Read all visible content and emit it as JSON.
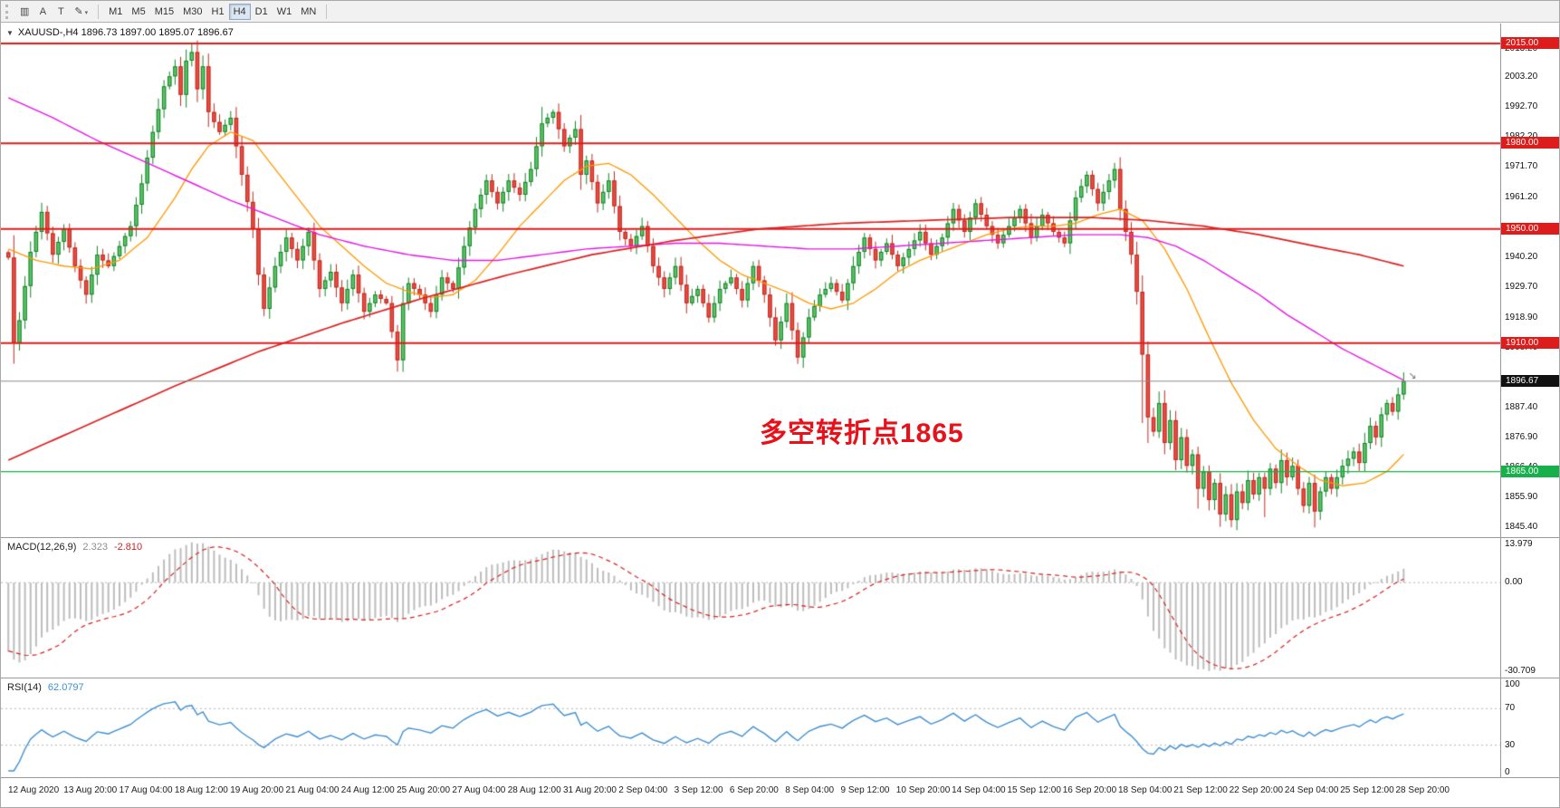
{
  "toolbar": {
    "icons": [
      {
        "name": "chart-objects-icon",
        "glyph": "▥"
      },
      {
        "name": "text-tool-icon",
        "glyph": "A"
      },
      {
        "name": "label-tool-icon",
        "glyph": "T"
      },
      {
        "name": "style-dropdown-icon",
        "glyph": "✎",
        "caret": "▾"
      }
    ],
    "timeframes": [
      {
        "label": "M1",
        "active": false
      },
      {
        "label": "M5",
        "active": false
      },
      {
        "label": "M15",
        "active": false
      },
      {
        "label": "M30",
        "active": false
      },
      {
        "label": "H1",
        "active": false
      },
      {
        "label": "H4",
        "active": true
      },
      {
        "label": "D1",
        "active": false
      },
      {
        "label": "W1",
        "active": false
      },
      {
        "label": "MN",
        "active": false
      }
    ]
  },
  "chart": {
    "symbol_header": {
      "collapse_icon": "▼",
      "text": "XAUUSD-,H4 1896.73 1897.00 1895.07 1896.67"
    },
    "annotation": {
      "text": "多空转折点1865",
      "color": "#e8111a"
    },
    "price_axis": {
      "max": 2022,
      "min": 1842,
      "ticks": [
        "2013.20",
        "2003.20",
        "1992.70",
        "1982.20",
        "1971.70",
        "1961.20",
        "1940.20",
        "1929.70",
        "1918.90",
        "1908.40",
        "1887.40",
        "1876.90",
        "1866.40",
        "1855.90",
        "1845.40"
      ]
    },
    "levels": [
      {
        "label": "2015.00",
        "price": 2015.0,
        "color": "#dd1c1c",
        "text_color": "#ffffff",
        "width": 2
      },
      {
        "label": "1980.00",
        "price": 1980.0,
        "color": "#dd1c1c",
        "text_color": "#ffffff",
        "width": 2
      },
      {
        "label": "1950.00",
        "price": 1950.0,
        "color": "#dd1c1c",
        "text_color": "#ffffff",
        "width": 2
      },
      {
        "label": "1910.00",
        "price": 1910.0,
        "color": "#dd1c1c",
        "text_color": "#ffffff",
        "width": 2
      },
      {
        "label": "1865.00",
        "price": 1865.0,
        "color": "#18b04a",
        "text_color": "#ffffff",
        "width": 1.2
      }
    ],
    "current_price": {
      "label": "1896.67",
      "price": 1896.67,
      "badge_color": "#111111",
      "text_color": "#ffffff",
      "line_color": "#8c8c8c"
    },
    "time_axis": [
      "12 Aug 2020",
      "13 Aug 20:00",
      "17 Aug 04:00",
      "18 Aug 12:00",
      "19 Aug 20:00",
      "21 Aug 04:00",
      "24 Aug 12:00",
      "25 Aug 20:00",
      "27 Aug 04:00",
      "28 Aug 12:00",
      "31 Aug 20:00",
      "2 Sep 04:00",
      "3 Sep 12:00",
      "6 Sep 20:00",
      "8 Sep 04:00",
      "9 Sep 12:00",
      "10 Sep 20:00",
      "14 Sep 04:00",
      "15 Sep 12:00",
      "16 Sep 20:00",
      "18 Sep 04:00",
      "21 Sep 12:00",
      "22 Sep 20:00",
      "24 Sep 04:00",
      "25 Sep 12:00",
      "28 Sep 20:00"
    ]
  },
  "chart_data": {
    "type": "candlestick",
    "symbol": "XAUUSD-",
    "timeframe": "H4",
    "current_ohlc": {
      "open": 1896.73,
      "high": 1897.0,
      "low": 1895.07,
      "close": 1896.67
    },
    "bars": 252,
    "price_range": [
      1842,
      2022
    ],
    "horizontal_levels": [
      2015,
      1980,
      1950,
      1910,
      1865
    ],
    "candle_colors": {
      "up_fill": "#5fc468",
      "up_stroke": "#14832a",
      "down_fill": "#ea4c41",
      "down_stroke": "#bf2b22"
    },
    "close_path": [
      [
        0,
        1940
      ],
      [
        1,
        1910
      ],
      [
        2,
        1918
      ],
      [
        4,
        1942
      ],
      [
        6,
        1956
      ],
      [
        8,
        1941
      ],
      [
        10,
        1950
      ],
      [
        12,
        1937
      ],
      [
        14,
        1927
      ],
      [
        16,
        1941
      ],
      [
        18,
        1937
      ],
      [
        20,
        1944
      ],
      [
        22,
        1951
      ],
      [
        24,
        1966
      ],
      [
        26,
        1984
      ],
      [
        28,
        2000
      ],
      [
        30,
        2007
      ],
      [
        31,
        1997
      ],
      [
        32,
        2009
      ],
      [
        33,
        2012
      ],
      [
        34,
        1999
      ],
      [
        35,
        2007
      ],
      [
        36,
        1991
      ],
      [
        38,
        1984
      ],
      [
        40,
        1989
      ],
      [
        42,
        1969
      ],
      [
        44,
        1950
      ],
      [
        45,
        1934
      ],
      [
        46,
        1922
      ],
      [
        48,
        1937
      ],
      [
        50,
        1947
      ],
      [
        52,
        1939
      ],
      [
        54,
        1949
      ],
      [
        56,
        1929
      ],
      [
        58,
        1935
      ],
      [
        60,
        1924
      ],
      [
        62,
        1934
      ],
      [
        64,
        1921
      ],
      [
        66,
        1927
      ],
      [
        68,
        1924
      ],
      [
        70,
        1904
      ],
      [
        71,
        1924
      ],
      [
        72,
        1931
      ],
      [
        74,
        1927
      ],
      [
        76,
        1921
      ],
      [
        78,
        1933
      ],
      [
        80,
        1929
      ],
      [
        82,
        1944
      ],
      [
        84,
        1957
      ],
      [
        86,
        1967
      ],
      [
        88,
        1959
      ],
      [
        90,
        1967
      ],
      [
        92,
        1962
      ],
      [
        94,
        1971
      ],
      [
        96,
        1987
      ],
      [
        98,
        1991
      ],
      [
        100,
        1979
      ],
      [
        102,
        1985
      ],
      [
        103,
        1969
      ],
      [
        104,
        1974
      ],
      [
        106,
        1959
      ],
      [
        108,
        1967
      ],
      [
        110,
        1949
      ],
      [
        112,
        1944
      ],
      [
        114,
        1951
      ],
      [
        116,
        1937
      ],
      [
        118,
        1929
      ],
      [
        120,
        1937
      ],
      [
        122,
        1924
      ],
      [
        124,
        1929
      ],
      [
        126,
        1919
      ],
      [
        128,
        1929
      ],
      [
        130,
        1933
      ],
      [
        132,
        1925
      ],
      [
        134,
        1937
      ],
      [
        136,
        1927
      ],
      [
        138,
        1911
      ],
      [
        140,
        1924
      ],
      [
        142,
        1905
      ],
      [
        144,
        1919
      ],
      [
        146,
        1927
      ],
      [
        148,
        1931
      ],
      [
        150,
        1925
      ],
      [
        152,
        1937
      ],
      [
        154,
        1947
      ],
      [
        156,
        1939
      ],
      [
        158,
        1945
      ],
      [
        160,
        1937
      ],
      [
        162,
        1943
      ],
      [
        164,
        1949
      ],
      [
        166,
        1941
      ],
      [
        168,
        1947
      ],
      [
        170,
        1957
      ],
      [
        172,
        1949
      ],
      [
        174,
        1959
      ],
      [
        176,
        1951
      ],
      [
        178,
        1945
      ],
      [
        180,
        1951
      ],
      [
        182,
        1957
      ],
      [
        184,
        1947
      ],
      [
        186,
        1955
      ],
      [
        188,
        1949
      ],
      [
        190,
        1945
      ],
      [
        192,
        1961
      ],
      [
        194,
        1969
      ],
      [
        196,
        1959
      ],
      [
        198,
        1967
      ],
      [
        199,
        1971
      ],
      [
        200,
        1957
      ],
      [
        201,
        1949
      ],
      [
        202,
        1941
      ],
      [
        203,
        1928
      ],
      [
        204,
        1906
      ],
      [
        205,
        1884
      ],
      [
        206,
        1879
      ],
      [
        207,
        1889
      ],
      [
        208,
        1875
      ],
      [
        209,
        1883
      ],
      [
        210,
        1869
      ],
      [
        211,
        1877
      ],
      [
        212,
        1867
      ],
      [
        213,
        1871
      ],
      [
        214,
        1859
      ],
      [
        215,
        1865
      ],
      [
        216,
        1855
      ],
      [
        217,
        1861
      ],
      [
        218,
        1850
      ],
      [
        219,
        1857
      ],
      [
        220,
        1848
      ],
      [
        221,
        1858
      ],
      [
        222,
        1854
      ],
      [
        223,
        1862
      ],
      [
        224,
        1857
      ],
      [
        225,
        1863
      ],
      [
        226,
        1859
      ],
      [
        227,
        1866
      ],
      [
        228,
        1861
      ],
      [
        229,
        1869
      ],
      [
        230,
        1863
      ],
      [
        231,
        1867
      ],
      [
        232,
        1859
      ],
      [
        233,
        1853
      ],
      [
        234,
        1861
      ],
      [
        235,
        1851
      ],
      [
        236,
        1858
      ],
      [
        237,
        1863
      ],
      [
        238,
        1859
      ],
      [
        240,
        1867
      ],
      [
        242,
        1872
      ],
      [
        243,
        1868
      ],
      [
        244,
        1875
      ],
      [
        245,
        1881
      ],
      [
        246,
        1877
      ],
      [
        247,
        1885
      ],
      [
        248,
        1889
      ],
      [
        249,
        1886
      ],
      [
        250,
        1892
      ],
      [
        251,
        1896.67
      ]
    ],
    "spikes": [
      {
        "bar": 33,
        "high": 2015.3
      },
      {
        "bar": 36,
        "high": 2009
      },
      {
        "bar": 70,
        "low": 1902.3
      },
      {
        "bar": 96,
        "high": 1992.8
      },
      {
        "bar": 142,
        "low": 1903.6
      },
      {
        "bar": 204,
        "low": 1882
      },
      {
        "bar": 205,
        "low": 1875
      },
      {
        "bar": 214,
        "low": 1852
      },
      {
        "bar": 218,
        "low": 1846.5
      },
      {
        "bar": 220,
        "low": 1845.7
      },
      {
        "bar": 226,
        "low": 1849
      },
      {
        "bar": 235,
        "low": 1845.4
      }
    ],
    "moving_averages": [
      {
        "name": "fast-ma",
        "color": "#ff9800",
        "width": 1.3,
        "points": [
          [
            0,
            1943
          ],
          [
            5,
            1939
          ],
          [
            10,
            1937
          ],
          [
            15,
            1936
          ],
          [
            20,
            1939
          ],
          [
            25,
            1947
          ],
          [
            30,
            1961
          ],
          [
            33,
            1971
          ],
          [
            36,
            1979
          ],
          [
            40,
            1984
          ],
          [
            44,
            1981
          ],
          [
            48,
            1971
          ],
          [
            52,
            1961
          ],
          [
            56,
            1951
          ],
          [
            60,
            1944
          ],
          [
            64,
            1937
          ],
          [
            68,
            1931
          ],
          [
            72,
            1928
          ],
          [
            76,
            1926
          ],
          [
            80,
            1927
          ],
          [
            84,
            1932
          ],
          [
            88,
            1941
          ],
          [
            92,
            1951
          ],
          [
            96,
            1959
          ],
          [
            100,
            1967
          ],
          [
            104,
            1972
          ],
          [
            108,
            1973
          ],
          [
            112,
            1969
          ],
          [
            116,
            1962
          ],
          [
            120,
            1954
          ],
          [
            124,
            1946
          ],
          [
            128,
            1939
          ],
          [
            132,
            1934
          ],
          [
            136,
            1931
          ],
          [
            140,
            1928
          ],
          [
            144,
            1924
          ],
          [
            148,
            1922
          ],
          [
            152,
            1924
          ],
          [
            156,
            1929
          ],
          [
            160,
            1935
          ],
          [
            164,
            1939
          ],
          [
            168,
            1942
          ],
          [
            172,
            1945
          ],
          [
            176,
            1948
          ],
          [
            180,
            1950
          ],
          [
            184,
            1951
          ],
          [
            188,
            1951
          ],
          [
            192,
            1952
          ],
          [
            196,
            1955
          ],
          [
            200,
            1957
          ],
          [
            204,
            1953
          ],
          [
            208,
            1943
          ],
          [
            212,
            1929
          ],
          [
            216,
            1912
          ],
          [
            220,
            1896
          ],
          [
            224,
            1883
          ],
          [
            228,
            1873
          ],
          [
            232,
            1867
          ],
          [
            236,
            1862
          ],
          [
            240,
            1860
          ],
          [
            244,
            1861
          ],
          [
            248,
            1865
          ],
          [
            251,
            1871
          ]
        ]
      },
      {
        "name": "mid-ma",
        "color": "#e616e6",
        "width": 1.4,
        "points": [
          [
            0,
            1996
          ],
          [
            8,
            1989
          ],
          [
            16,
            1981
          ],
          [
            24,
            1974
          ],
          [
            32,
            1967
          ],
          [
            40,
            1960
          ],
          [
            48,
            1954
          ],
          [
            56,
            1948
          ],
          [
            64,
            1944
          ],
          [
            72,
            1941
          ],
          [
            80,
            1939
          ],
          [
            88,
            1939
          ],
          [
            96,
            1941
          ],
          [
            104,
            1943
          ],
          [
            112,
            1944
          ],
          [
            120,
            1945
          ],
          [
            128,
            1945
          ],
          [
            136,
            1944
          ],
          [
            144,
            1943
          ],
          [
            152,
            1943
          ],
          [
            160,
            1944
          ],
          [
            168,
            1945
          ],
          [
            176,
            1946
          ],
          [
            184,
            1947
          ],
          [
            192,
            1948
          ],
          [
            200,
            1948
          ],
          [
            205,
            1947
          ],
          [
            210,
            1944
          ],
          [
            215,
            1939
          ],
          [
            220,
            1933
          ],
          [
            225,
            1927
          ],
          [
            230,
            1920
          ],
          [
            235,
            1914
          ],
          [
            240,
            1908
          ],
          [
            245,
            1903
          ],
          [
            251,
            1897
          ]
        ]
      },
      {
        "name": "slow-ma",
        "color": "#dd2020",
        "width": 1.7,
        "points": [
          [
            0,
            1869
          ],
          [
            15,
            1882
          ],
          [
            30,
            1895
          ],
          [
            45,
            1907
          ],
          [
            60,
            1917
          ],
          [
            75,
            1926
          ],
          [
            90,
            1934
          ],
          [
            105,
            1941
          ],
          [
            120,
            1946
          ],
          [
            135,
            1950
          ],
          [
            150,
            1952
          ],
          [
            165,
            1953
          ],
          [
            180,
            1954
          ],
          [
            195,
            1954
          ],
          [
            205,
            1953
          ],
          [
            215,
            1951
          ],
          [
            225,
            1948
          ],
          [
            235,
            1944
          ],
          [
            243,
            1941
          ],
          [
            251,
            1937
          ]
        ]
      }
    ],
    "macd": {
      "label": "MACD(12,26,9)",
      "main_value": "2.323",
      "signal_value": "-2.810",
      "axis_labels": [
        "13.979",
        "0.00",
        "-30.709"
      ],
      "max": 13.979,
      "min": -30.709,
      "histogram_color": "#bdbdbd",
      "signal_color": "#d92020"
    },
    "rsi": {
      "label": "RSI(14)",
      "value": "62.0797",
      "axis_labels": [
        "100",
        "70",
        "30",
        "0"
      ],
      "levels": [
        70,
        30
      ],
      "line_color": "#3f8fd2"
    }
  }
}
